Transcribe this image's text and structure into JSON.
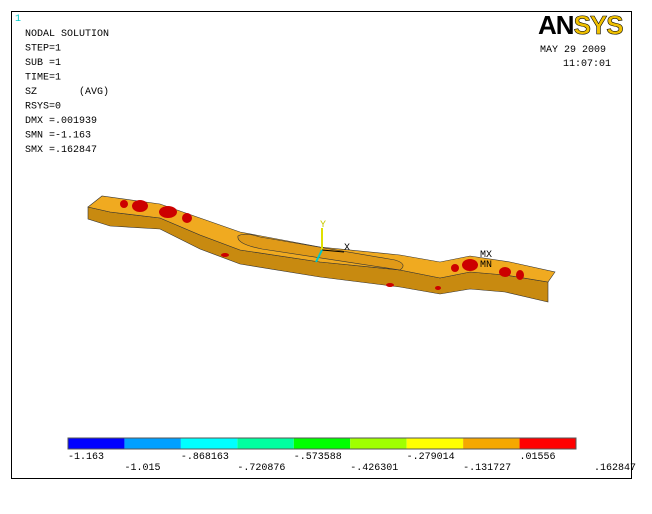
{
  "window_number": "1",
  "header": {
    "lines": [
      "NODAL SOLUTION",
      "STEP=1",
      "SUB =1",
      "TIME=1",
      "SZ       (AVG)",
      "RSYS=0",
      "DMX =.001939",
      "SMN =-1.163",
      "SMX =.162847"
    ]
  },
  "logo": [
    "AN",
    "SYS"
  ],
  "date": "MAY 29 2009",
  "time": "11:07:01",
  "triad": {
    "x": "X",
    "y": "Y"
  },
  "markers": {
    "max": "MX",
    "min": "MN"
  },
  "legend": {
    "colors": [
      "#0000ff",
      "#00a0ff",
      "#00ffff",
      "#00ffa0",
      "#00ff00",
      "#a0ff00",
      "#ffff00",
      "#f5a800",
      "#ff0000"
    ],
    "labels": [
      "-1.163",
      "-1.015",
      "-.868163",
      "-.720876",
      "-.573588",
      "-.426301",
      "-.279014",
      "-.131727",
      ".01556",
      ".162847"
    ]
  }
}
